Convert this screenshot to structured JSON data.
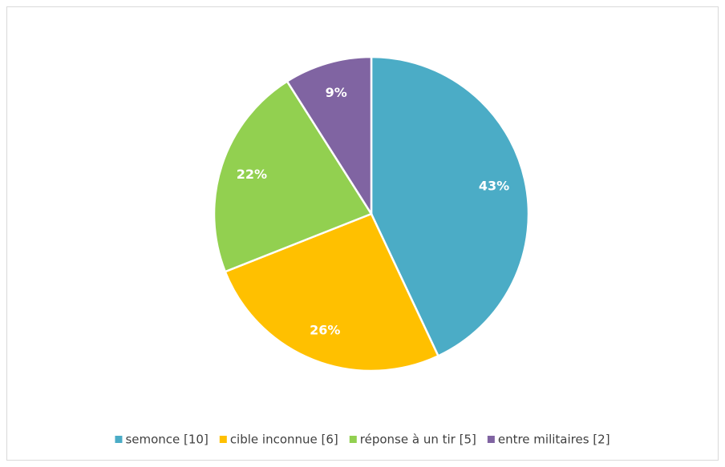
{
  "chart_data": {
    "type": "pie",
    "categories": [
      "semonce [10]",
      "cible inconnue [6]",
      "réponse à un tir [5]",
      "entre militaires [2]"
    ],
    "values": [
      43,
      26,
      22,
      9
    ],
    "value_labels": [
      "43%",
      "26%",
      "22%",
      "9%"
    ],
    "colors": [
      "#4bacc6",
      "#ffc000",
      "#92d050",
      "#8064a2"
    ],
    "legend": "bottom"
  }
}
